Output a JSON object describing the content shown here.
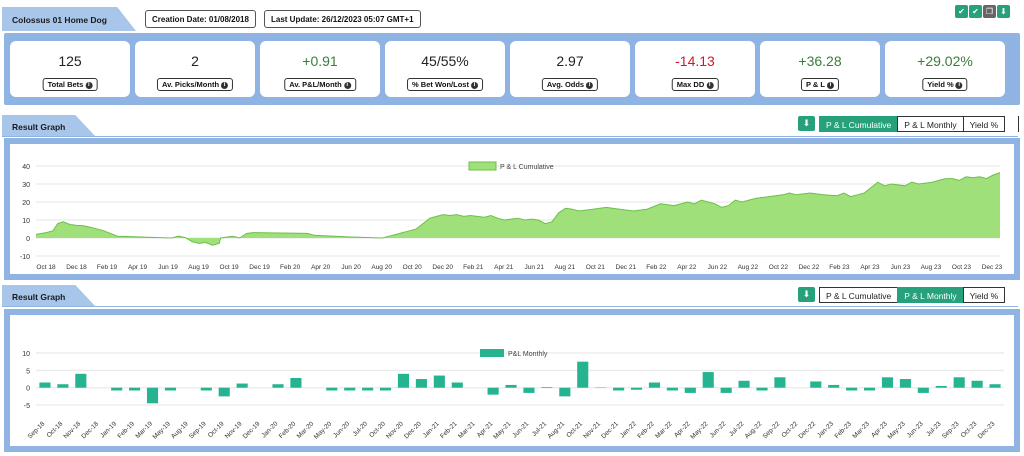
{
  "header": {
    "title": "Colossus 01 Home Dog",
    "creation_date": "Creation Date: 01/08/2018",
    "last_update": "Last Update: 26/12/2023 05:07 GMT+1",
    "icons": [
      {
        "name": "check-icon",
        "glyph": "✔",
        "color": "#26a17b"
      },
      {
        "name": "check-alt-icon",
        "glyph": "✔",
        "color": "#26a17b"
      },
      {
        "name": "copy-icon",
        "glyph": "❐",
        "color": "#666666"
      },
      {
        "name": "download-icon",
        "glyph": "⬇",
        "color": "#26a17b"
      }
    ]
  },
  "stats": [
    {
      "value": "125",
      "label": "Total Bets",
      "tone": ""
    },
    {
      "value": "2",
      "label": "Av. Picks/Month",
      "tone": ""
    },
    {
      "value": "+0.91",
      "label": "Av. P&L/Month",
      "tone": "pos"
    },
    {
      "value": "45/55%",
      "label": "% Bet Won/Lost",
      "tone": ""
    },
    {
      "value": "2.97",
      "label": "Avg. Odds",
      "tone": ""
    },
    {
      "value": "-14.13",
      "label": "Max DD",
      "tone": "neg"
    },
    {
      "value": "+36.28",
      "label": "P & L",
      "tone": "pos"
    },
    {
      "value": "+29.02%",
      "label": "Yield %",
      "tone": "pos"
    }
  ],
  "sections": [
    {
      "title": "Result Graph",
      "buttons": [
        "P & L Cumulative",
        "P & L Monthly",
        "Yield %"
      ],
      "active": 0
    },
    {
      "title": "Result Graph",
      "buttons": [
        "P & L Cumulative",
        "P & L Monthly",
        "Yield %"
      ],
      "active": 1
    }
  ],
  "colors": {
    "accent": "#26a17b",
    "panel": "#8fb4e3",
    "cumulative_fill": "#9fe07a",
    "monthly_bar": "#26b38f"
  },
  "chart_data": [
    {
      "type": "area",
      "series": [
        {
          "name": "P & L Cumulative"
        }
      ],
      "ylim": [
        -10,
        40
      ],
      "yticks": [
        -10,
        0,
        10,
        20,
        30,
        40
      ],
      "xticks": [
        "Oct 18",
        "Dec 18",
        "Feb 19",
        "Apr 19",
        "Jun 19",
        "Aug 19",
        "Oct 19",
        "Dec 19",
        "Feb 20",
        "Apr 20",
        "Jun 20",
        "Aug 20",
        "Oct 20",
        "Dec 20",
        "Feb 21",
        "Apr 21",
        "Jun 21",
        "Aug 21",
        "Oct 21",
        "Dec 21",
        "Feb 22",
        "Apr 22",
        "Jun 22",
        "Aug 22",
        "Oct 22",
        "Dec 22",
        "Feb 23",
        "Apr 23",
        "Jun 23",
        "Aug 23",
        "Oct 23",
        "Dec 23"
      ],
      "points": [
        [
          0,
          2
        ],
        [
          1.5,
          3
        ],
        [
          2.5,
          4
        ],
        [
          3.2,
          8
        ],
        [
          4,
          9
        ],
        [
          5,
          7.5
        ],
        [
          6,
          7
        ],
        [
          7,
          6.8
        ],
        [
          8,
          6
        ],
        [
          10,
          4
        ],
        [
          12,
          1
        ],
        [
          16,
          0.5
        ],
        [
          20,
          0
        ],
        [
          21,
          1
        ],
        [
          22,
          0.2
        ],
        [
          23,
          -2
        ],
        [
          24,
          -3
        ],
        [
          25,
          -2.5
        ],
        [
          26,
          -4
        ],
        [
          27,
          -3
        ],
        [
          27.2,
          0
        ],
        [
          28,
          0.5
        ],
        [
          29,
          1
        ],
        [
          30,
          0
        ],
        [
          31,
          2.5
        ],
        [
          32,
          3
        ],
        [
          36,
          2.8
        ],
        [
          40,
          2.6
        ],
        [
          41,
          1.5
        ],
        [
          46,
          0.6
        ],
        [
          51,
          0
        ],
        [
          52,
          1
        ],
        [
          54,
          3
        ],
        [
          55,
          4
        ],
        [
          56,
          5
        ],
        [
          57,
          8
        ],
        [
          58,
          11
        ],
        [
          59,
          12
        ],
        [
          60,
          13
        ],
        [
          61,
          12.5
        ],
        [
          62,
          13
        ],
        [
          63,
          12
        ],
        [
          64,
          12.5
        ],
        [
          65,
          12
        ],
        [
          66,
          11.5
        ],
        [
          67,
          12.5
        ],
        [
          68,
          11
        ],
        [
          69,
          10
        ],
        [
          70,
          10.5
        ],
        [
          71,
          11
        ],
        [
          72,
          10
        ],
        [
          73,
          10.5
        ],
        [
          74,
          10
        ],
        [
          75,
          8
        ],
        [
          76,
          9
        ],
        [
          77,
          14
        ],
        [
          78,
          16.5
        ],
        [
          79,
          16
        ],
        [
          80,
          15
        ],
        [
          82,
          16
        ],
        [
          84,
          17
        ],
        [
          86,
          16
        ],
        [
          88,
          15
        ],
        [
          90,
          16
        ],
        [
          92,
          19
        ],
        [
          94,
          18
        ],
        [
          96,
          20
        ],
        [
          97,
          19
        ],
        [
          98,
          21
        ],
        [
          99,
          20
        ],
        [
          100,
          19
        ],
        [
          101,
          17
        ],
        [
          102,
          18
        ],
        [
          103,
          21
        ],
        [
          104,
          20
        ],
        [
          106,
          22
        ],
        [
          108,
          23
        ],
        [
          110,
          24
        ],
        [
          111,
          25
        ],
        [
          112,
          24
        ],
        [
          114,
          25
        ],
        [
          116,
          24
        ],
        [
          118,
          23.5
        ],
        [
          119,
          25
        ],
        [
          120,
          23
        ],
        [
          121,
          24
        ],
        [
          122,
          25
        ],
        [
          123,
          28
        ],
        [
          124,
          31
        ],
        [
          125,
          29
        ],
        [
          126,
          30
        ],
        [
          128,
          29
        ],
        [
          129,
          31
        ],
        [
          130,
          30
        ],
        [
          131,
          30.5
        ],
        [
          132,
          31
        ],
        [
          133,
          32
        ],
        [
          134,
          33
        ],
        [
          135,
          33
        ],
        [
          136,
          32
        ],
        [
          137,
          34
        ],
        [
          138,
          33.5
        ],
        [
          139,
          34
        ],
        [
          140,
          33
        ],
        [
          141,
          35
        ],
        [
          142,
          36.3
        ]
      ],
      "x_max": 142
    },
    {
      "type": "bar",
      "series": [
        {
          "name": "P&L Monthly"
        }
      ],
      "ylim": [
        -7,
        10
      ],
      "yticks": [
        -5,
        0,
        5,
        10
      ],
      "categories": [
        "Sep-18",
        "Oct-18",
        "Nov-18",
        "Dec-18",
        "Jan-19",
        "Feb-19",
        "Mar-19",
        "May-19",
        "Aug-19",
        "Sep-19",
        "Oct-19",
        "Nov-19",
        "Dec-19",
        "Jan-20",
        "Feb-20",
        "Mar-20",
        "May-20",
        "Jun-20",
        "Jul-20",
        "Oct-20",
        "Nov-20",
        "Dec-20",
        "Jan-21",
        "Feb-21",
        "Mar-21",
        "Apr-21",
        "May-21",
        "Jun-21",
        "Jul-21",
        "Aug-21",
        "Oct-21",
        "Nov-21",
        "Dec-21",
        "Jan-22",
        "Feb-22",
        "Mar-22",
        "Apr-22",
        "May-22",
        "Jun-22",
        "Jul-22",
        "Aug-22",
        "Sep-22",
        "Oct-22",
        "Dec-22",
        "Jan-23",
        "Feb-23",
        "Mar-23",
        "Apr-23",
        "May-23",
        "Jun-23",
        "Jul-23",
        "Sep-23",
        "Oct-23",
        "Dec-23"
      ],
      "values": [
        1.5,
        1.0,
        4.0,
        0,
        -0.8,
        -0.8,
        -4.5,
        -0.8,
        0,
        -0.8,
        -2.5,
        1.2,
        0,
        1.0,
        2.8,
        0,
        -0.8,
        -0.8,
        -0.8,
        -0.8,
        4.0,
        2.5,
        3.5,
        1.5,
        0,
        -2.0,
        0.8,
        -1.5,
        0.2,
        -2.5,
        7.5,
        0.1,
        -0.8,
        -0.6,
        1.5,
        -0.8,
        -1.5,
        4.5,
        -1.5,
        2.0,
        -0.8,
        3.0,
        0,
        1.8,
        0.8,
        -0.8,
        -0.8,
        3.0,
        2.5,
        -1.5,
        0.5,
        3.0,
        2.0,
        1.0
      ]
    }
  ]
}
